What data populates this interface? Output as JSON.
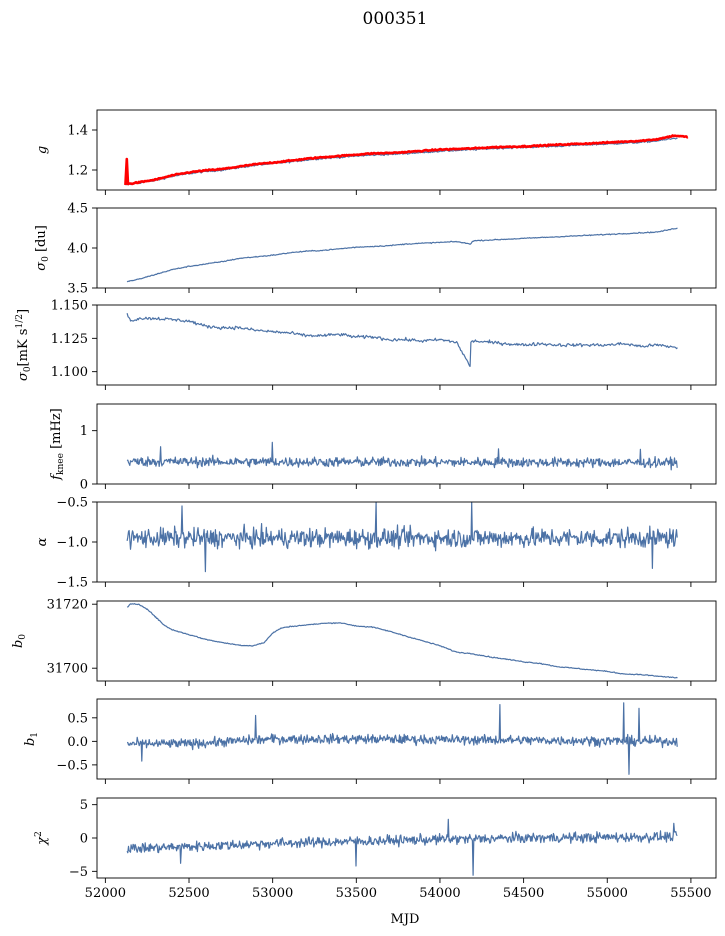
{
  "figure": {
    "title": "000351",
    "xlabel": "MJD"
  },
  "colors": {
    "series": "#4c72a6",
    "overlay": "#ff0000",
    "frame": "#000000"
  },
  "chart_data": [
    {
      "type": "line",
      "ylabel": "g",
      "xlim": [
        51950,
        55650
      ],
      "ylim": [
        1.1,
        1.5
      ],
      "xticks": [
        52000,
        52500,
        53000,
        53500,
        54000,
        54500,
        55000,
        55500
      ],
      "yticks": [
        1.2,
        1.4
      ],
      "ytick_labels": [
        "1.2",
        "1.4"
      ],
      "series": [
        {
          "name": "g",
          "color": "#4c72a6",
          "noise": 0.004,
          "x": [
            52120,
            52200,
            52300,
            52400,
            52500,
            52600,
            52700,
            52800,
            52900,
            53000,
            53100,
            53200,
            53300,
            53400,
            53500,
            53600,
            53700,
            53800,
            53900,
            54000,
            54100,
            54200,
            54300,
            54400,
            54500,
            54600,
            54700,
            54800,
            54900,
            55000,
            55100,
            55200,
            55300,
            55420
          ],
          "y": [
            1.125,
            1.135,
            1.148,
            1.168,
            1.182,
            1.192,
            1.2,
            1.212,
            1.224,
            1.232,
            1.24,
            1.25,
            1.258,
            1.263,
            1.27,
            1.275,
            1.278,
            1.283,
            1.288,
            1.294,
            1.298,
            1.302,
            1.307,
            1.31,
            1.313,
            1.316,
            1.319,
            1.323,
            1.327,
            1.33,
            1.334,
            1.338,
            1.346,
            1.36
          ]
        },
        {
          "name": "g-fit",
          "color": "#ff0000",
          "width": 2.6,
          "noise": 0.003,
          "x": [
            52120,
            52128,
            52135,
            52200,
            52300,
            52400,
            52500,
            52600,
            52700,
            52800,
            52900,
            53000,
            53100,
            53200,
            53300,
            53400,
            53500,
            53600,
            53700,
            53800,
            53900,
            54000,
            54100,
            54200,
            54300,
            54400,
            54500,
            54600,
            54700,
            54800,
            54900,
            55000,
            55100,
            55200,
            55300,
            55400,
            55480
          ],
          "y": [
            1.125,
            1.255,
            1.13,
            1.138,
            1.152,
            1.173,
            1.188,
            1.198,
            1.205,
            1.217,
            1.229,
            1.237,
            1.246,
            1.256,
            1.264,
            1.27,
            1.277,
            1.283,
            1.285,
            1.29,
            1.296,
            1.302,
            1.305,
            1.308,
            1.313,
            1.316,
            1.318,
            1.322,
            1.326,
            1.33,
            1.333,
            1.337,
            1.342,
            1.346,
            1.354,
            1.372,
            1.365
          ]
        }
      ]
    },
    {
      "type": "line",
      "ylabel": "σ0 [du]",
      "ylabel_main": "σ",
      "ylabel_sub": "0",
      "ylabel_rest": " [du]",
      "xlim": [
        51950,
        55650
      ],
      "ylim": [
        3.5,
        4.5
      ],
      "xticks": [
        52000,
        52500,
        53000,
        53500,
        54000,
        54500,
        55000,
        55500
      ],
      "yticks": [
        3.5,
        4.0,
        4.5
      ],
      "ytick_labels": [
        "3.5",
        "4.0",
        "4.5"
      ],
      "series": [
        {
          "name": "sigma0-du",
          "color": "#4c72a6",
          "noise": 0.006,
          "x": [
            52130,
            52200,
            52300,
            52400,
            52500,
            52600,
            52700,
            52800,
            52900,
            53000,
            53100,
            53200,
            53300,
            53400,
            53500,
            53600,
            53700,
            53800,
            53900,
            54000,
            54100,
            54180,
            54200,
            54300,
            54400,
            54500,
            54600,
            54700,
            54800,
            54900,
            55000,
            55100,
            55200,
            55300,
            55420
          ],
          "y": [
            3.58,
            3.61,
            3.67,
            3.73,
            3.77,
            3.8,
            3.83,
            3.87,
            3.89,
            3.91,
            3.94,
            3.96,
            3.97,
            3.99,
            4.01,
            4.02,
            4.03,
            4.05,
            4.06,
            4.07,
            4.08,
            4.05,
            4.09,
            4.1,
            4.11,
            4.12,
            4.13,
            4.14,
            4.15,
            4.16,
            4.17,
            4.18,
            4.19,
            4.2,
            4.25
          ]
        }
      ]
    },
    {
      "type": "line",
      "ylabel": "σ0[mK s1/2]",
      "ylabel_main": "σ",
      "ylabel_sub": "0",
      "ylabel_rest": "[mK s",
      "ylabel_sup": "1/2",
      "ylabel_end": "]",
      "xlim": [
        51950,
        55650
      ],
      "ylim": [
        1.09,
        1.15
      ],
      "xticks": [
        52000,
        52500,
        53000,
        53500,
        54000,
        54500,
        55000,
        55500
      ],
      "yticks": [
        1.1,
        1.125,
        1.15
      ],
      "ytick_labels": [
        "1.100",
        "1.125",
        "1.150"
      ],
      "series": [
        {
          "name": "sigma0-mk",
          "color": "#4c72a6",
          "noise": 0.0012,
          "x": [
            52130,
            52150,
            52200,
            52300,
            52400,
            52500,
            52600,
            52700,
            52800,
            52900,
            53000,
            53100,
            53200,
            53300,
            53400,
            53500,
            53600,
            53700,
            53800,
            53900,
            54000,
            54100,
            54180,
            54185,
            54200,
            54300,
            54400,
            54500,
            54600,
            54700,
            54800,
            54900,
            55000,
            55100,
            55200,
            55300,
            55420
          ],
          "y": [
            1.144,
            1.138,
            1.14,
            1.14,
            1.139,
            1.138,
            1.134,
            1.133,
            1.133,
            1.131,
            1.13,
            1.129,
            1.127,
            1.127,
            1.128,
            1.126,
            1.126,
            1.124,
            1.124,
            1.123,
            1.124,
            1.122,
            1.104,
            1.122,
            1.123,
            1.122,
            1.121,
            1.12,
            1.121,
            1.12,
            1.12,
            1.12,
            1.12,
            1.121,
            1.119,
            1.12,
            1.118
          ]
        }
      ]
    },
    {
      "type": "line",
      "ylabel": "fknee [mHz]",
      "ylabel_main": "f",
      "ylabel_sub": "knee",
      "ylabel_rest": " [mHz]",
      "xlim": [
        51950,
        55650
      ],
      "ylim": [
        0,
        1.5
      ],
      "xticks": [
        52000,
        52500,
        53000,
        53500,
        54000,
        54500,
        55000,
        55500
      ],
      "yticks": [
        0,
        1
      ],
      "ytick_labels": [
        "0",
        "1"
      ],
      "series": [
        {
          "name": "fknee",
          "color": "#4c72a6",
          "noise": 0.09,
          "generated": true,
          "x": [
            52130,
            55420
          ],
          "y": [
            0.42,
            0.4
          ],
          "spikes": [
            [
              53000,
              0.78
            ],
            [
              52330,
              0.7
            ],
            [
              54350,
              0.66
            ],
            [
              55200,
              0.65
            ]
          ]
        }
      ]
    },
    {
      "type": "line",
      "ylabel": "α",
      "xlim": [
        51950,
        55650
      ],
      "ylim": [
        -1.5,
        -0.5
      ],
      "xticks": [
        52000,
        52500,
        53000,
        53500,
        54000,
        54500,
        55000,
        55500
      ],
      "yticks": [
        -1.5,
        -1.0,
        -0.5
      ],
      "ytick_labels": [
        "−1.5",
        "−1.0",
        "−0.5"
      ],
      "series": [
        {
          "name": "alpha",
          "color": "#4c72a6",
          "noise": 0.12,
          "generated": true,
          "x": [
            52130,
            55420
          ],
          "y": [
            -0.95,
            -0.95
          ],
          "spikes": [
            [
              53620,
              -0.5
            ],
            [
              54190,
              -0.5
            ],
            [
              52600,
              -1.37
            ],
            [
              55270,
              -1.33
            ],
            [
              52460,
              -0.55
            ]
          ]
        }
      ]
    },
    {
      "type": "line",
      "ylabel": "b0",
      "ylabel_main": "b",
      "ylabel_sub": "0",
      "ylabel_rest": "",
      "xlim": [
        51950,
        55650
      ],
      "ylim": [
        31696,
        31721
      ],
      "xticks": [
        52000,
        52500,
        53000,
        53500,
        54000,
        54500,
        55000,
        55500
      ],
      "yticks": [
        31700,
        31720
      ],
      "ytick_labels": [
        "31700",
        "31720"
      ],
      "series": [
        {
          "name": "b0",
          "color": "#4c72a6",
          "noise": 0.15,
          "x": [
            52130,
            52150,
            52200,
            52250,
            52300,
            52350,
            52400,
            52500,
            52600,
            52700,
            52800,
            52880,
            52950,
            53000,
            53050,
            53100,
            53200,
            53300,
            53400,
            53500,
            53600,
            53700,
            53800,
            53900,
            54000,
            54100,
            54200,
            54300,
            54400,
            54500,
            54600,
            54700,
            54800,
            54900,
            55000,
            55100,
            55200,
            55300,
            55420
          ],
          "y": [
            31719,
            31720,
            31720,
            31718.5,
            31716,
            31713.5,
            31712,
            31710.5,
            31709,
            31708,
            31707.2,
            31707,
            31708,
            31711,
            31712.5,
            31713,
            31713.5,
            31714,
            31714.2,
            31713.2,
            31712.8,
            31711.5,
            31710,
            31708.5,
            31707,
            31705,
            31704.5,
            31703.5,
            31702.8,
            31702,
            31701.5,
            31700.5,
            31700,
            31699.5,
            31699,
            31698.2,
            31698,
            31697.5,
            31697
          ]
        }
      ]
    },
    {
      "type": "line",
      "ylabel": "b1",
      "ylabel_main": "b",
      "ylabel_sub": "1",
      "ylabel_rest": "",
      "xlim": [
        51950,
        55650
      ],
      "ylim": [
        -0.8,
        0.9
      ],
      "xticks": [
        52000,
        52500,
        53000,
        53500,
        54000,
        54500,
        55000,
        55500
      ],
      "yticks": [
        -0.5,
        0.0,
        0.5
      ],
      "ytick_labels": [
        "−0.5",
        "0.0",
        "0.5"
      ],
      "series": [
        {
          "name": "b1",
          "color": "#4c72a6",
          "noise": 0.1,
          "generated": true,
          "x": [
            52130,
            52500,
            53000,
            53500,
            55420
          ],
          "y": [
            -0.05,
            -0.05,
            0.05,
            0.05,
            0.0
          ],
          "spikes": [
            [
              54360,
              0.78
            ],
            [
              55100,
              0.82
            ],
            [
              55190,
              0.7
            ],
            [
              55130,
              -0.7
            ],
            [
              52900,
              0.55
            ],
            [
              52220,
              -0.42
            ]
          ]
        }
      ]
    },
    {
      "type": "line",
      "ylabel": "χ2",
      "ylabel_main": "χ",
      "ylabel_sup": "2",
      "ylabel_rest": "",
      "xlim": [
        51950,
        55650
      ],
      "ylim": [
        -6,
        6
      ],
      "xticks": [
        52000,
        52500,
        53000,
        53500,
        54000,
        54500,
        55000,
        55500
      ],
      "yticks": [
        -5,
        0,
        5
      ],
      "ytick_labels": [
        "−5",
        "0",
        "5"
      ],
      "show_xtick_labels": true,
      "xtick_labels": [
        "52000",
        "52500",
        "53000",
        "53500",
        "54000",
        "54500",
        "55000",
        "55500"
      ],
      "series": [
        {
          "name": "chi2",
          "color": "#4c72a6",
          "noise": 0.75,
          "generated": true,
          "x": [
            52130,
            52500,
            53000,
            53500,
            54000,
            54500,
            55420
          ],
          "y": [
            -1.6,
            -1.3,
            -0.8,
            -0.5,
            -0.2,
            0.0,
            0.2
          ],
          "spikes": [
            [
              54200,
              -5.6
            ],
            [
              53500,
              -4.2
            ],
            [
              52450,
              -3.8
            ],
            [
              54050,
              2.8
            ],
            [
              55400,
              2.2
            ]
          ]
        }
      ]
    }
  ]
}
